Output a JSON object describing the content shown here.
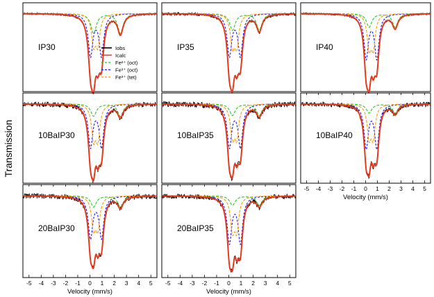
{
  "chart_data": {
    "type": "line",
    "ylabel": "Transmission",
    "xlabel": "Velocity (mm/s)",
    "xlim": [
      -5.5,
      5.5
    ],
    "x_ticks": [
      "-5",
      "-4",
      "-3",
      "-2",
      "-1",
      "0",
      "1",
      "2",
      "3",
      "4",
      "5"
    ],
    "legend": {
      "placement": "inside IP30 panel, right",
      "entries": [
        {
          "label": "Iobs",
          "color": "#000000",
          "style": "solid"
        },
        {
          "label": "Icalc",
          "color": "#e8381b",
          "style": "solid"
        },
        {
          "label": "Fe²⁺ (oct)",
          "color": "#22cc22",
          "style": "dashed"
        },
        {
          "label": "Fe³⁺ (oct)",
          "color": "#1a1aff",
          "style": "dashed"
        },
        {
          "label": "Fe³⁺ (tet)",
          "color": "#ff9900",
          "style": "dashed"
        }
      ]
    },
    "components": {
      "fe2_oct": {
        "centers": [
          0.3,
          2.5
        ],
        "fwhm": 0.55
      },
      "fe3_oct": {
        "centers": [
          0.05,
          0.95
        ],
        "fwhm": 0.45
      },
      "fe3_tet": {
        "centers": [
          0.3,
          0.65
        ],
        "fwhm": 0.4
      }
    },
    "panels": [
      {
        "name": "IP30",
        "depths": {
          "fe2": 0.26,
          "fe3o": 0.55,
          "fe3t": 0.38
        },
        "noise": 0.012
      },
      {
        "name": "IP35",
        "depths": {
          "fe2": 0.22,
          "fe3o": 0.55,
          "fe3t": 0.4
        },
        "noise": 0.02
      },
      {
        "name": "IP40",
        "depths": {
          "fe2": 0.18,
          "fe3o": 0.58,
          "fe3t": 0.42
        },
        "noise": 0.012
      },
      {
        "name": "10BaIP30",
        "depths": {
          "fe2": 0.16,
          "fe3o": 0.55,
          "fe3t": 0.42
        },
        "noise": 0.03
      },
      {
        "name": "10BaIP35",
        "depths": {
          "fe2": 0.15,
          "fe3o": 0.55,
          "fe3t": 0.4
        },
        "noise": 0.035
      },
      {
        "name": "10BaIP40",
        "depths": {
          "fe2": 0.12,
          "fe3o": 0.56,
          "fe3t": 0.4
        },
        "noise": 0.03
      },
      {
        "name": "20BaIP30",
        "depths": {
          "fe2": 0.14,
          "fe3o": 0.52,
          "fe3t": 0.38
        },
        "noise": 0.032
      },
      {
        "name": "20BaIP35",
        "depths": {
          "fe2": 0.12,
          "fe3o": 0.58,
          "fe3t": 0.4
        },
        "noise": 0.03
      }
    ]
  }
}
